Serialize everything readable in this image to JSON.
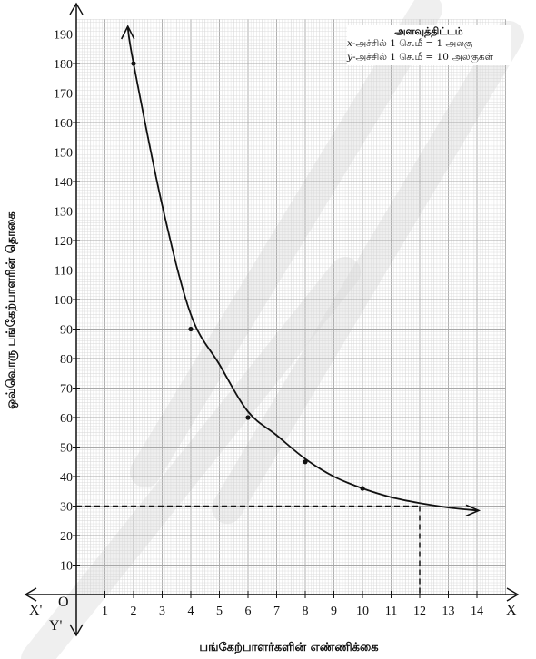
{
  "chart_data": {
    "type": "line",
    "title": "",
    "xlabel": "பங்கேற்பாளர்களின் எண்ணிக்கை",
    "ylabel": "ஒவ்வொரு பங்கேற்பாளரின் தொகை",
    "xlim": [
      0,
      15
    ],
    "ylim": [
      0,
      195
    ],
    "x_ticks": [
      "1",
      "2",
      "3",
      "4",
      "5",
      "6",
      "7",
      "8",
      "9",
      "10",
      "11",
      "12",
      "13",
      "14"
    ],
    "y_ticks": [
      "10",
      "20",
      "30",
      "40",
      "50",
      "60",
      "70",
      "80",
      "90",
      "100",
      "110",
      "120",
      "130",
      "140",
      "150",
      "160",
      "170",
      "180",
      "190"
    ],
    "grid": true,
    "series": [
      {
        "x": [
          2,
          4,
          6,
          8,
          10
        ],
        "y": [
          180,
          90,
          60,
          45,
          36
        ]
      }
    ],
    "curve": {
      "x": [
        1.8,
        2,
        3,
        4,
        5,
        6,
        7,
        8,
        9,
        10,
        11,
        12,
        13,
        14
      ],
      "y": [
        192,
        180,
        132,
        95,
        78,
        62,
        54,
        46,
        40,
        36,
        33,
        31,
        29.5,
        28.5
      ]
    },
    "guide": {
      "x": 12,
      "y": 30
    },
    "axis_names": {
      "x": "X",
      "x_neg": "X'",
      "y_neg": "Y'",
      "origin": "O"
    },
    "scale_box": {
      "title": "அளவுத்திட்டம்",
      "x_axis_var": "x",
      "x_scale": "-அச்சில் 1 செ.மீ = 1 அலகு",
      "y_axis_var": "y",
      "y_scale": "-அச்சில் 1 செ.மீ = 10 அலகுகள்"
    }
  },
  "colors": {
    "minor_grid": "#d6d6d6",
    "major_grid": "#a8a8a8",
    "curve": "#111111",
    "watermark": "#dcdcdc"
  }
}
